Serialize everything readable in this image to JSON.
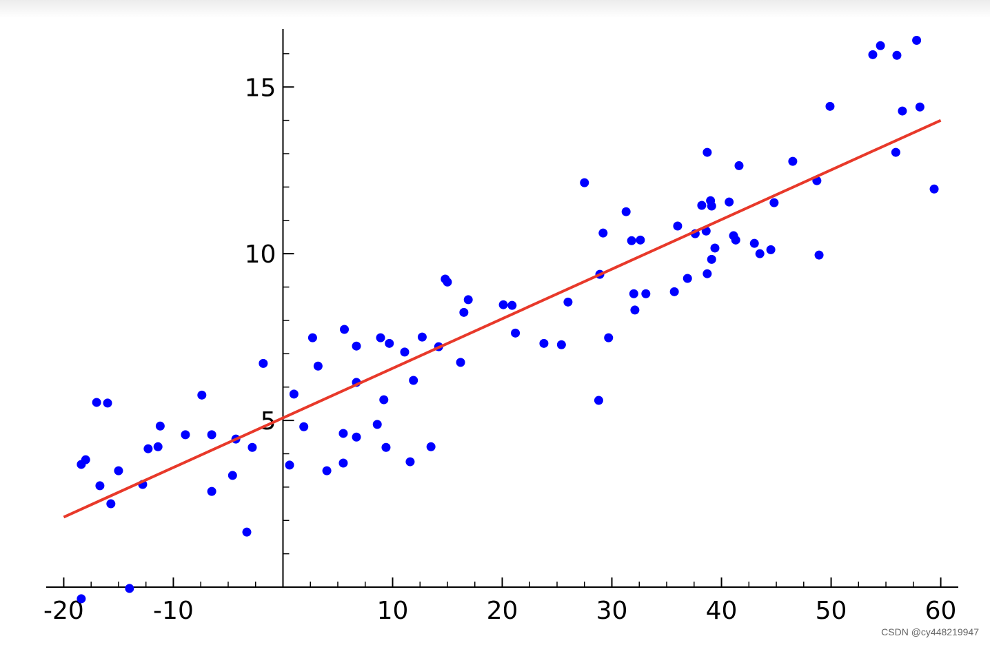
{
  "chart_data": {
    "type": "scatter",
    "x": [
      -18.4,
      -18.4,
      -18.0,
      -17.0,
      -16.0,
      -16.7,
      -15.7,
      -15.0,
      -14.0,
      -12.8,
      -12.3,
      -11.4,
      -11.2,
      -8.9,
      -7.4,
      -6.5,
      -6.5,
      -4.6,
      -4.3,
      -3.3,
      -2.8,
      -1.8,
      0.6,
      1.0,
      1.9,
      2.7,
      3.2,
      4.0,
      5.5,
      5.5,
      5.6,
      6.7,
      6.7,
      6.7,
      8.6,
      8.9,
      9.2,
      9.4,
      9.7,
      11.1,
      11.6,
      11.9,
      12.7,
      13.5,
      14.2,
      14.8,
      15.0,
      16.2,
      16.5,
      16.9,
      20.1,
      20.9,
      21.2,
      23.8,
      25.4,
      26.0,
      27.5,
      28.8,
      28.9,
      29.2,
      29.7,
      31.3,
      31.8,
      32.0,
      32.1,
      32.6,
      33.1,
      35.7,
      36.0,
      36.9,
      37.6,
      38.2,
      38.6,
      38.7,
      38.7,
      39.0,
      39.1,
      39.1,
      39.4,
      40.7,
      41.1,
      41.3,
      41.6,
      43.0,
      43.5,
      44.5,
      44.8,
      46.5,
      48.7,
      48.9,
      49.9,
      53.8,
      54.5,
      55.9,
      56.0,
      56.5,
      57.8,
      58.1,
      59.4
    ],
    "values": [
      -0.35,
      3.68,
      3.82,
      5.54,
      5.52,
      3.04,
      2.5,
      3.49,
      -0.04,
      3.08,
      4.15,
      4.21,
      4.83,
      4.57,
      5.76,
      2.87,
      4.57,
      3.35,
      4.44,
      1.65,
      4.19,
      6.71,
      3.66,
      5.79,
      4.81,
      7.48,
      6.63,
      3.49,
      3.72,
      4.61,
      7.73,
      4.5,
      7.23,
      6.14,
      4.88,
      7.48,
      5.62,
      4.19,
      7.31,
      7.05,
      3.76,
      6.2,
      7.5,
      4.21,
      7.21,
      9.24,
      9.15,
      6.74,
      8.24,
      8.62,
      8.47,
      8.45,
      7.62,
      7.31,
      7.27,
      8.55,
      12.13,
      5.6,
      9.38,
      10.62,
      7.48,
      11.26,
      10.39,
      8.8,
      8.31,
      10.41,
      8.8,
      8.86,
      10.83,
      9.26,
      10.6,
      11.45,
      10.68,
      13.04,
      9.4,
      11.59,
      11.43,
      9.83,
      10.17,
      11.55,
      10.54,
      10.41,
      12.64,
      10.31,
      10.0,
      10.12,
      11.53,
      12.77,
      12.19,
      9.96,
      14.42,
      15.97,
      16.24,
      13.04,
      15.95,
      14.28,
      16.4,
      14.4,
      11.94
    ],
    "color": "#0000ff",
    "fit_line": {
      "type": "line",
      "x": [
        -20,
        60
      ],
      "values": [
        2.1,
        14.0
      ],
      "color": "#e8392a"
    },
    "xlim": [
      -21.6,
      61.6
    ],
    "ylim": [
      0,
      16.7
    ],
    "xticks": [
      -20,
      -10,
      10,
      20,
      30,
      40,
      50,
      60
    ],
    "yticks": [
      5,
      10,
      15
    ],
    "xminorticks": [
      -17.5,
      -15,
      -12.5,
      -7.5,
      -5,
      -2.5,
      2.5,
      5,
      7.5,
      12.5,
      15,
      17.5,
      22.5,
      25,
      27.5,
      32.5,
      35,
      37.5,
      42.5,
      45,
      47.5,
      52.5,
      55,
      57.5
    ],
    "yminorticks": [
      1,
      2,
      3,
      4,
      6,
      7,
      8,
      9,
      11,
      12,
      13,
      14,
      16
    ],
    "watermark": "CSDN @cy448219947"
  }
}
